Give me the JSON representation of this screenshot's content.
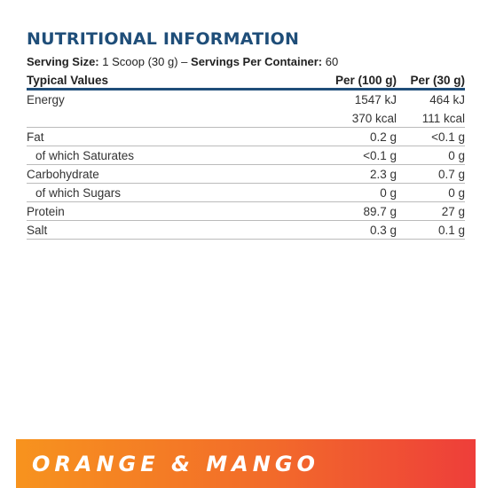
{
  "title": "NUTRITIONAL INFORMATION",
  "serving": {
    "size_label": "Serving Size:",
    "size_value": "1 Scoop (30 g)",
    "separator": "–",
    "servings_label": "Servings Per Container:",
    "servings_value": "60"
  },
  "table": {
    "headers": [
      "Typical Values",
      "Per (100 g)",
      "Per (30 g)"
    ],
    "rows": [
      {
        "name": "Energy",
        "per100": "1547 kJ",
        "per30": "464 kJ"
      },
      {
        "name": "",
        "per100": "370 kcal",
        "per30": "111 kcal"
      },
      {
        "name": "Fat",
        "per100": "0.2 g",
        "per30": "<0.1 g"
      },
      {
        "name": "of which Saturates",
        "per100": "<0.1 g",
        "per30": "0 g"
      },
      {
        "name": "Carbohydrate",
        "per100": "2.3 g",
        "per30": "0.7 g"
      },
      {
        "name": "of which Sugars",
        "per100": "0 g",
        "per30": "0 g"
      },
      {
        "name": "Protein",
        "per100": "89.7 g",
        "per30": "27 g"
      },
      {
        "name": "Salt",
        "per100": "0.3 g",
        "per30": "0.1 g"
      }
    ]
  },
  "flavor": "ORANGE & MANGO",
  "colors": {
    "title": "#1f4e79",
    "header_rule": "#1f4e79",
    "band_start": "#f7931e",
    "band_end": "#ee3e3a"
  }
}
